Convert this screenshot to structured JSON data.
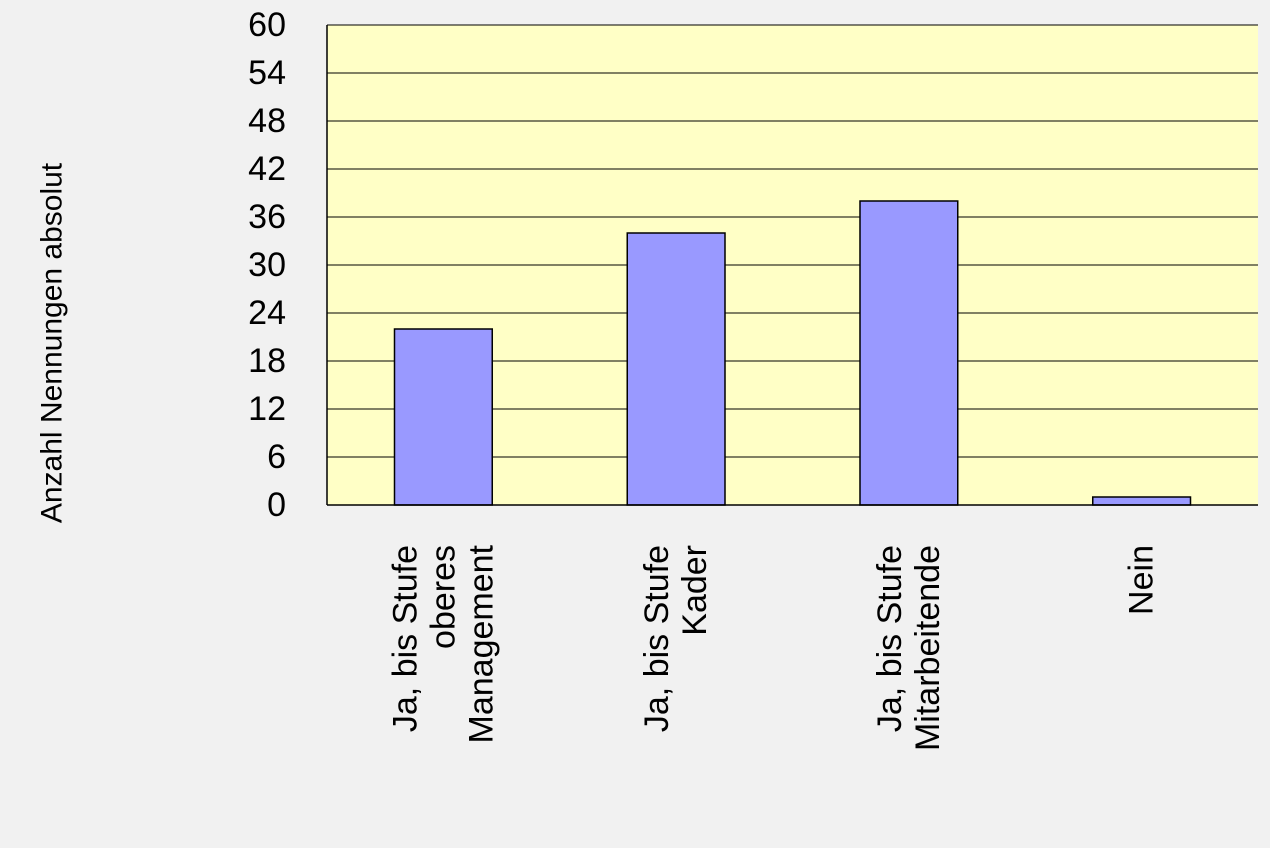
{
  "chart_data": {
    "type": "bar",
    "ylabel": "Anzahl Nennungen absolut",
    "xlabel": "",
    "ylim": [
      0,
      60
    ],
    "yticks": [
      0,
      6,
      12,
      18,
      24,
      30,
      36,
      42,
      48,
      54,
      60
    ],
    "grid": true,
    "categories": [
      [
        "Ja, bis Stufe",
        "oberes",
        "Management"
      ],
      [
        "Ja, bis Stufe",
        "Kader"
      ],
      [
        "Ja, bis Stufe",
        "Mitarbeitende"
      ],
      [
        "Nein"
      ]
    ],
    "series": [
      {
        "values": [
          22,
          34,
          38,
          1
        ]
      }
    ],
    "colors": {
      "plot_background": "#ffffc6",
      "bar_fill": "#9999ff",
      "bar_stroke": "#000000",
      "gridline": "#000000",
      "page_background": "#f1f1f1"
    }
  }
}
